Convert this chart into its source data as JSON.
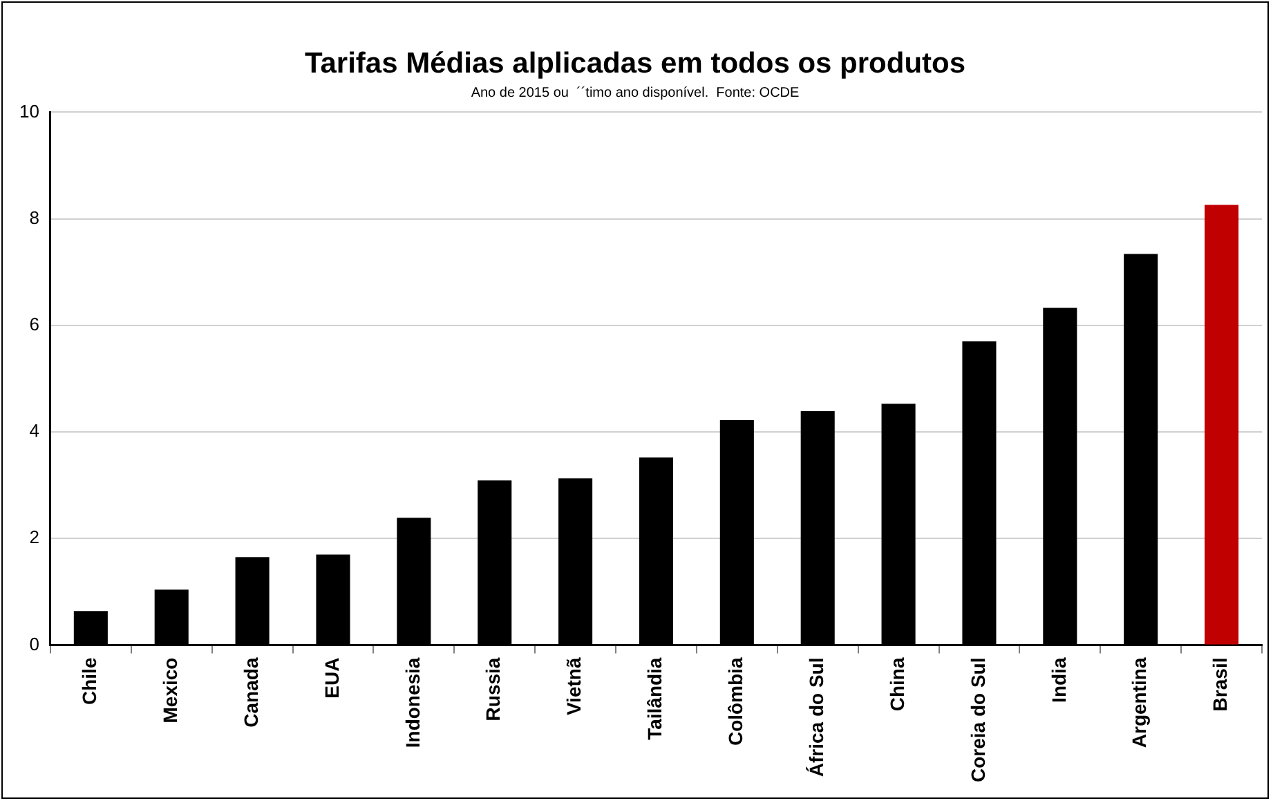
{
  "chart_data": {
    "type": "bar",
    "title": "Tarifas Médias alplicadas em todos os produtos",
    "subtitle": "Ano de 2015 ou  ´´timo ano disponível.  Fonte: OCDE",
    "categories": [
      "Chile",
      "Mexico",
      "Canada",
      "EUA",
      "Indonesia",
      "Russia",
      "Vietnã",
      "Tailândia",
      "Colômbia",
      "África do Sul",
      "China",
      "Coreia do Sul",
      "India",
      "Argentina",
      "Brasil"
    ],
    "values": [
      0.64,
      1.04,
      1.65,
      1.7,
      2.39,
      3.09,
      3.13,
      3.52,
      4.22,
      4.39,
      4.53,
      5.7,
      6.33,
      7.34,
      8.26
    ],
    "colors": [
      "#000000",
      "#000000",
      "#000000",
      "#000000",
      "#000000",
      "#000000",
      "#000000",
      "#000000",
      "#000000",
      "#000000",
      "#000000",
      "#000000",
      "#000000",
      "#000000",
      "#c00000"
    ],
    "ylim": [
      0,
      10
    ],
    "yticks": [
      0,
      2,
      4,
      6,
      8,
      10
    ],
    "grid": "y",
    "legend": false
  }
}
